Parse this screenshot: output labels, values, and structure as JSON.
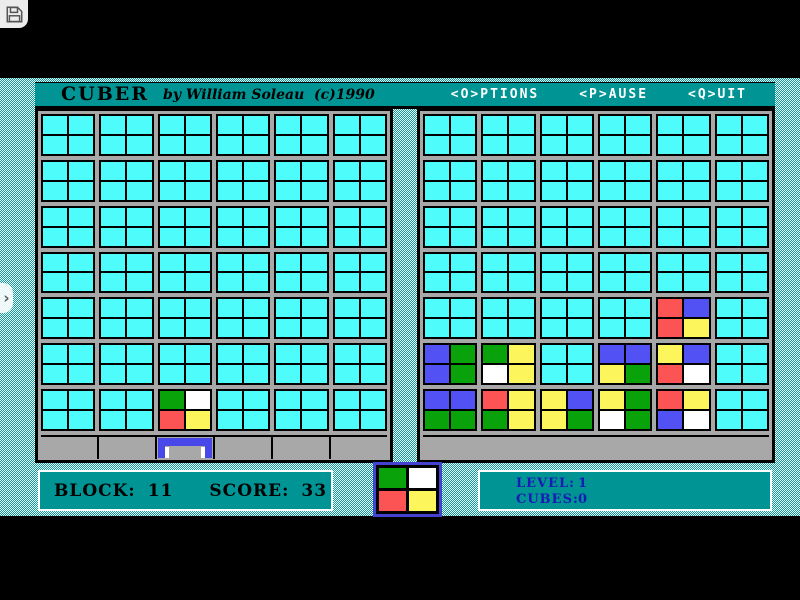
{
  "title_bar": {
    "title": "CUBER",
    "byline": "by William Soleau  (c)1990",
    "menu": [
      {
        "label": "<O>PTIONS"
      },
      {
        "label": "<P>AUSE"
      },
      {
        "label": "<Q>UIT"
      }
    ]
  },
  "colors": {
    "cyan": "#4efcfc",
    "teal": "#009494",
    "red": "#fc5454",
    "green": "#0aa20a",
    "blue": "#5252f4",
    "yellow": "#fcf65c",
    "white": "#ffffff",
    "frame_gray": "#a8a8a8",
    "catcher_blue": "#4848e8",
    "preview_border": "#4343cf",
    "menu_text": "#ffffff",
    "status_text_navy": "#1a1ab4"
  },
  "boards": {
    "columns": 12,
    "rows": 14,
    "group_size": 2,
    "left": {
      "catcher_group_col": 3,
      "floor_segmented": true,
      "cells": [
        {
          "row": 13,
          "col": 5,
          "color": "green"
        },
        {
          "row": 13,
          "col": 6,
          "color": "white"
        },
        {
          "row": 14,
          "col": 5,
          "color": "red"
        },
        {
          "row": 14,
          "col": 6,
          "color": "yellow"
        }
      ]
    },
    "right": {
      "catcher_group_col": 0,
      "floor_segmented": false,
      "cells": [
        {
          "row": 9,
          "col": 9,
          "color": "red"
        },
        {
          "row": 9,
          "col": 10,
          "color": "blue"
        },
        {
          "row": 10,
          "col": 9,
          "color": "red"
        },
        {
          "row": 10,
          "col": 10,
          "color": "yellow"
        },
        {
          "row": 11,
          "col": 1,
          "color": "blue"
        },
        {
          "row": 11,
          "col": 2,
          "color": "green"
        },
        {
          "row": 11,
          "col": 3,
          "color": "green"
        },
        {
          "row": 11,
          "col": 4,
          "color": "yellow"
        },
        {
          "row": 11,
          "col": 7,
          "color": "blue"
        },
        {
          "row": 11,
          "col": 8,
          "color": "blue"
        },
        {
          "row": 11,
          "col": 9,
          "color": "yellow"
        },
        {
          "row": 11,
          "col": 10,
          "color": "blue"
        },
        {
          "row": 12,
          "col": 1,
          "color": "blue"
        },
        {
          "row": 12,
          "col": 2,
          "color": "green"
        },
        {
          "row": 12,
          "col": 3,
          "color": "white"
        },
        {
          "row": 12,
          "col": 4,
          "color": "yellow"
        },
        {
          "row": 12,
          "col": 7,
          "color": "yellow"
        },
        {
          "row": 12,
          "col": 8,
          "color": "green"
        },
        {
          "row": 12,
          "col": 9,
          "color": "red"
        },
        {
          "row": 12,
          "col": 10,
          "color": "white"
        },
        {
          "row": 13,
          "col": 1,
          "color": "blue"
        },
        {
          "row": 13,
          "col": 2,
          "color": "blue"
        },
        {
          "row": 13,
          "col": 3,
          "color": "red"
        },
        {
          "row": 13,
          "col": 4,
          "color": "yellow"
        },
        {
          "row": 13,
          "col": 5,
          "color": "yellow"
        },
        {
          "row": 13,
          "col": 6,
          "color": "blue"
        },
        {
          "row": 13,
          "col": 7,
          "color": "yellow"
        },
        {
          "row": 13,
          "col": 8,
          "color": "green"
        },
        {
          "row": 13,
          "col": 9,
          "color": "red"
        },
        {
          "row": 13,
          "col": 10,
          "color": "yellow"
        },
        {
          "row": 14,
          "col": 1,
          "color": "green"
        },
        {
          "row": 14,
          "col": 2,
          "color": "green"
        },
        {
          "row": 14,
          "col": 3,
          "color": "green"
        },
        {
          "row": 14,
          "col": 4,
          "color": "yellow"
        },
        {
          "row": 14,
          "col": 5,
          "color": "yellow"
        },
        {
          "row": 14,
          "col": 6,
          "color": "green"
        },
        {
          "row": 14,
          "col": 7,
          "color": "white"
        },
        {
          "row": 14,
          "col": 8,
          "color": "green"
        },
        {
          "row": 14,
          "col": 9,
          "color": "blue"
        },
        {
          "row": 14,
          "col": 10,
          "color": "white"
        }
      ]
    }
  },
  "status": {
    "block_label": "BLOCK:",
    "block_value": "11",
    "score_label": "SCORE:",
    "score_value": "33",
    "level_label": "LEVEL:",
    "level_value": "1",
    "cubes_label": "CUBES:",
    "cubes_value": "0"
  },
  "preview": {
    "cells": [
      "green",
      "white",
      "red",
      "yellow"
    ]
  },
  "overlay": {
    "save_icon": "floppy-disk",
    "expand_chevron": "›"
  }
}
